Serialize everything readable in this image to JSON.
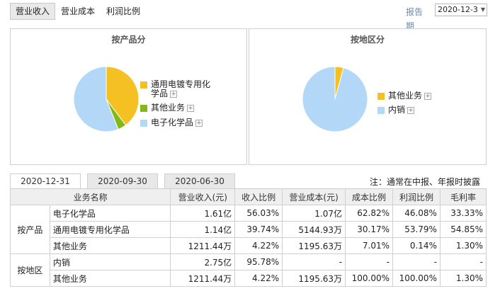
{
  "tabs": [
    "营业收入",
    "营业成本",
    "利润比例"
  ],
  "report": {
    "label": "报告期",
    "value": "2020-12-3"
  },
  "pies": [
    {
      "title": "按产品分",
      "items": [
        {
          "label": "通用电镀专用化学品",
          "value": 39.74,
          "color": "#f5c122"
        },
        {
          "label": "其他业务",
          "value": 4.22,
          "color": "#84b817"
        },
        {
          "label": "电子化学品",
          "value": 56.03,
          "color": "#b3d8f7"
        }
      ]
    },
    {
      "title": "按地区分",
      "items": [
        {
          "label": "其他业务",
          "value": 4.22,
          "color": "#f5c122"
        },
        {
          "label": "内销",
          "value": 95.78,
          "color": "#b3d8f7"
        }
      ]
    }
  ],
  "plus_sign": "+",
  "date_tabs": [
    "2020-12-31",
    "2020-09-30",
    "2020-06-30"
  ],
  "note": "注：通常在中报、年报时披露",
  "table": {
    "headers": [
      "业务名称",
      "营业收入(元)",
      "收入比例",
      "营业成本(元)",
      "成本比例",
      "利润比例",
      "毛利率"
    ],
    "groups": [
      {
        "name": "按产品",
        "rows": [
          [
            "电子化学品",
            "1.61亿",
            "56.03%",
            "1.07亿",
            "62.82%",
            "46.08%",
            "33.33%"
          ],
          [
            "通用电镀专用化学品",
            "1.14亿",
            "39.74%",
            "5144.93万",
            "30.17%",
            "53.79%",
            "54.85%"
          ],
          [
            "其他业务",
            "1211.44万",
            "4.22%",
            "1195.63万",
            "7.01%",
            "0.14%",
            "1.30%"
          ]
        ]
      },
      {
        "name": "按地区",
        "rows": [
          [
            "内销",
            "2.75亿",
            "95.78%",
            "-",
            "-",
            "-",
            "-"
          ],
          [
            "其他业务",
            "1211.44万",
            "4.22%",
            "1195.63万",
            "100.00%",
            "100.00%",
            "1.30%"
          ]
        ]
      }
    ]
  }
}
